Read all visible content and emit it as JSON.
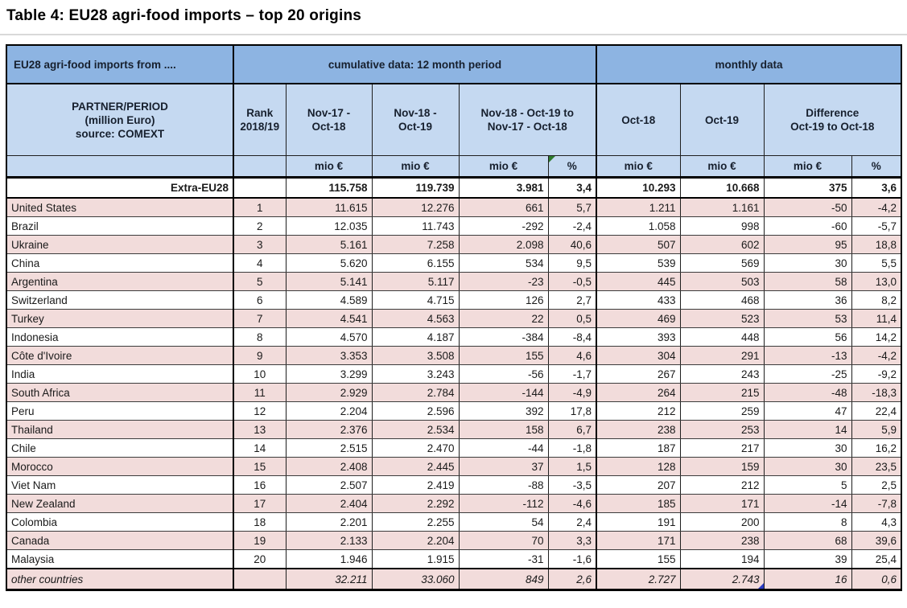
{
  "title": "Table 4: EU28 agri-food imports – top 20 origins",
  "colors": {
    "group_header_blue": "#8DB4E2",
    "sub_header_blue": "#C5D9F1",
    "row_pink": "#F2DCDB",
    "row_white": "#FFFFFF",
    "flag_green": "#2C7A2C",
    "flag_blue": "#2A3CC4"
  },
  "table": {
    "group_header": {
      "partner": "EU28 agri-food imports from ....",
      "cumulative": "cumulative data: 12 month period",
      "monthly": "monthly data"
    },
    "col_header": {
      "partner": [
        "PARTNER/PERIOD",
        "(million Euro)",
        "source: COMEXT"
      ],
      "rank": [
        "Rank",
        "2018/19"
      ],
      "cum_prev": [
        "Nov-17 -",
        "Oct-18"
      ],
      "cum_curr": [
        "Nov-18 -",
        "Oct-19"
      ],
      "cum_diff": [
        "Nov-18 - Oct-19 to",
        "Nov-17 - Oct-18"
      ],
      "oct18": [
        "Oct-18"
      ],
      "oct19": [
        "Oct-19"
      ],
      "diff": [
        "Difference",
        "Oct-19 to Oct-18"
      ]
    },
    "units": [
      "",
      "",
      "mio €",
      "mio €",
      "mio €",
      "%",
      "mio €",
      "mio €",
      "mio €",
      "%"
    ],
    "total": {
      "name": "Extra-EU28",
      "rank": "",
      "cum_prev": "115.758",
      "cum_curr": "119.739",
      "diff": "3.981",
      "diff_pct": "3,4",
      "oct18": "10.293",
      "oct19": "10.668",
      "mdiff": "375",
      "mdiff_pct": "3,6"
    },
    "rows": [
      {
        "name": "United States",
        "rank": "1",
        "cum_prev": "11.615",
        "cum_curr": "12.276",
        "diff": "661",
        "diff_pct": "5,7",
        "oct18": "1.211",
        "oct19": "1.161",
        "mdiff": "-50",
        "mdiff_pct": "-4,2"
      },
      {
        "name": "Brazil",
        "rank": "2",
        "cum_prev": "12.035",
        "cum_curr": "11.743",
        "diff": "-292",
        "diff_pct": "-2,4",
        "oct18": "1.058",
        "oct19": "998",
        "mdiff": "-60",
        "mdiff_pct": "-5,7"
      },
      {
        "name": "Ukraine",
        "rank": "3",
        "cum_prev": "5.161",
        "cum_curr": "7.258",
        "diff": "2.098",
        "diff_pct": "40,6",
        "oct18": "507",
        "oct19": "602",
        "mdiff": "95",
        "mdiff_pct": "18,8"
      },
      {
        "name": "China",
        "rank": "4",
        "cum_prev": "5.620",
        "cum_curr": "6.155",
        "diff": "534",
        "diff_pct": "9,5",
        "oct18": "539",
        "oct19": "569",
        "mdiff": "30",
        "mdiff_pct": "5,5"
      },
      {
        "name": "Argentina",
        "rank": "5",
        "cum_prev": "5.141",
        "cum_curr": "5.117",
        "diff": "-23",
        "diff_pct": "-0,5",
        "oct18": "445",
        "oct19": "503",
        "mdiff": "58",
        "mdiff_pct": "13,0"
      },
      {
        "name": "Switzerland",
        "rank": "6",
        "cum_prev": "4.589",
        "cum_curr": "4.715",
        "diff": "126",
        "diff_pct": "2,7",
        "oct18": "433",
        "oct19": "468",
        "mdiff": "36",
        "mdiff_pct": "8,2"
      },
      {
        "name": "Turkey",
        "rank": "7",
        "cum_prev": "4.541",
        "cum_curr": "4.563",
        "diff": "22",
        "diff_pct": "0,5",
        "oct18": "469",
        "oct19": "523",
        "mdiff": "53",
        "mdiff_pct": "11,4"
      },
      {
        "name": "Indonesia",
        "rank": "8",
        "cum_prev": "4.570",
        "cum_curr": "4.187",
        "diff": "-384",
        "diff_pct": "-8,4",
        "oct18": "393",
        "oct19": "448",
        "mdiff": "56",
        "mdiff_pct": "14,2"
      },
      {
        "name": "Côte d'Ivoire",
        "rank": "9",
        "cum_prev": "3.353",
        "cum_curr": "3.508",
        "diff": "155",
        "diff_pct": "4,6",
        "oct18": "304",
        "oct19": "291",
        "mdiff": "-13",
        "mdiff_pct": "-4,2"
      },
      {
        "name": "India",
        "rank": "10",
        "cum_prev": "3.299",
        "cum_curr": "3.243",
        "diff": "-56",
        "diff_pct": "-1,7",
        "oct18": "267",
        "oct19": "243",
        "mdiff": "-25",
        "mdiff_pct": "-9,2"
      },
      {
        "name": "South Africa",
        "rank": "11",
        "cum_prev": "2.929",
        "cum_curr": "2.784",
        "diff": "-144",
        "diff_pct": "-4,9",
        "oct18": "264",
        "oct19": "215",
        "mdiff": "-48",
        "mdiff_pct": "-18,3"
      },
      {
        "name": "Peru",
        "rank": "12",
        "cum_prev": "2.204",
        "cum_curr": "2.596",
        "diff": "392",
        "diff_pct": "17,8",
        "oct18": "212",
        "oct19": "259",
        "mdiff": "47",
        "mdiff_pct": "22,4"
      },
      {
        "name": "Thailand",
        "rank": "13",
        "cum_prev": "2.376",
        "cum_curr": "2.534",
        "diff": "158",
        "diff_pct": "6,7",
        "oct18": "238",
        "oct19": "253",
        "mdiff": "14",
        "mdiff_pct": "5,9"
      },
      {
        "name": "Chile",
        "rank": "14",
        "cum_prev": "2.515",
        "cum_curr": "2.470",
        "diff": "-44",
        "diff_pct": "-1,8",
        "oct18": "187",
        "oct19": "217",
        "mdiff": "30",
        "mdiff_pct": "16,2"
      },
      {
        "name": "Morocco",
        "rank": "15",
        "cum_prev": "2.408",
        "cum_curr": "2.445",
        "diff": "37",
        "diff_pct": "1,5",
        "oct18": "128",
        "oct19": "159",
        "mdiff": "30",
        "mdiff_pct": "23,5"
      },
      {
        "name": "Viet Nam",
        "rank": "16",
        "cum_prev": "2.507",
        "cum_curr": "2.419",
        "diff": "-88",
        "diff_pct": "-3,5",
        "oct18": "207",
        "oct19": "212",
        "mdiff": "5",
        "mdiff_pct": "2,5"
      },
      {
        "name": "New Zealand",
        "rank": "17",
        "cum_prev": "2.404",
        "cum_curr": "2.292",
        "diff": "-112",
        "diff_pct": "-4,6",
        "oct18": "185",
        "oct19": "171",
        "mdiff": "-14",
        "mdiff_pct": "-7,8"
      },
      {
        "name": "Colombia",
        "rank": "18",
        "cum_prev": "2.201",
        "cum_curr": "2.255",
        "diff": "54",
        "diff_pct": "2,4",
        "oct18": "191",
        "oct19": "200",
        "mdiff": "8",
        "mdiff_pct": "4,3"
      },
      {
        "name": "Canada",
        "rank": "19",
        "cum_prev": "2.133",
        "cum_curr": "2.204",
        "diff": "70",
        "diff_pct": "3,3",
        "oct18": "171",
        "oct19": "238",
        "mdiff": "68",
        "mdiff_pct": "39,6"
      },
      {
        "name": "Malaysia",
        "rank": "20",
        "cum_prev": "1.946",
        "cum_curr": "1.915",
        "diff": "-31",
        "diff_pct": "-1,6",
        "oct18": "155",
        "oct19": "194",
        "mdiff": "39",
        "mdiff_pct": "25,4"
      }
    ],
    "other": {
      "name": "other countries",
      "rank": "",
      "cum_prev": "32.211",
      "cum_curr": "33.060",
      "diff": "849",
      "diff_pct": "2,6",
      "oct18": "2.727",
      "oct19": "2.743",
      "mdiff": "16",
      "mdiff_pct": "0,6"
    }
  }
}
